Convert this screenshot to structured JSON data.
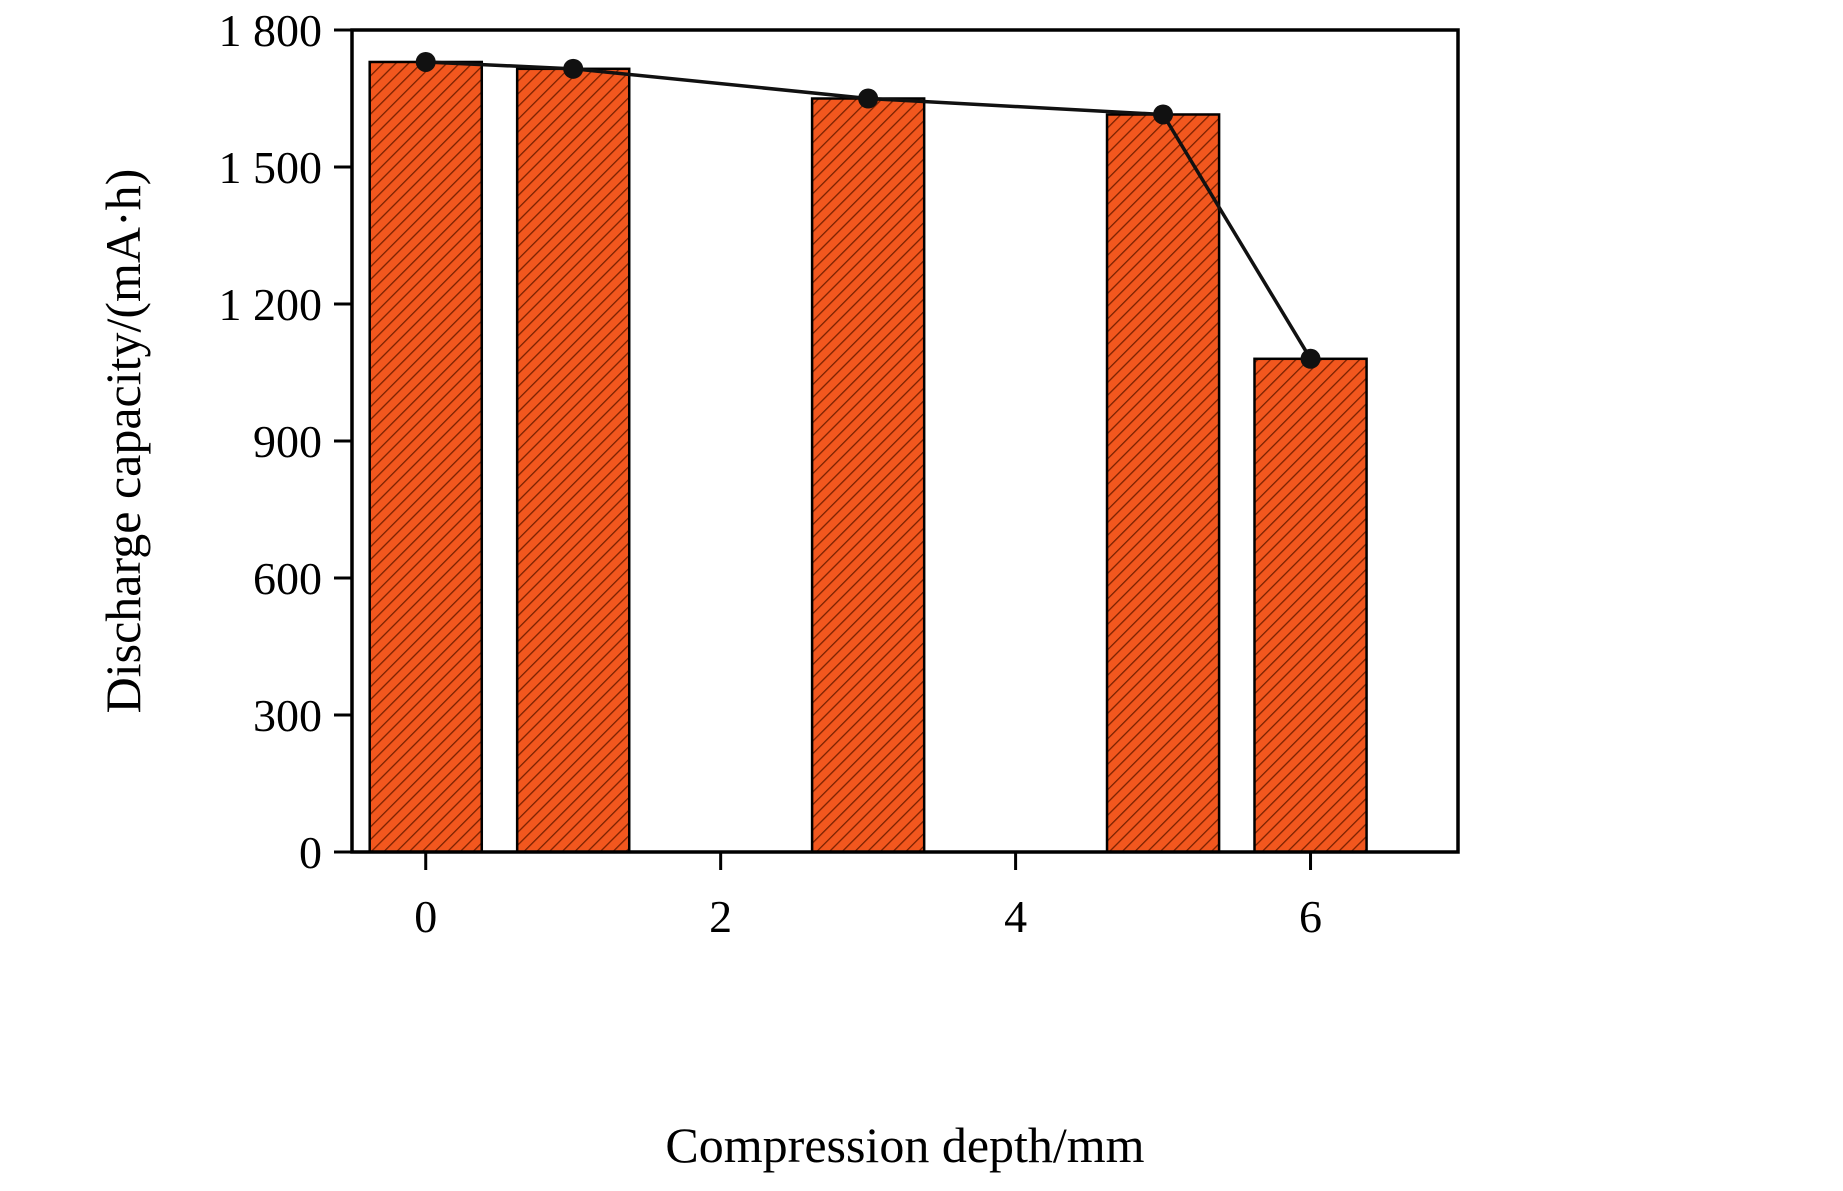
{
  "figure": {
    "title": "",
    "background": "#ffffff"
  },
  "chart_data": {
    "type": "bar",
    "overlay": "line",
    "x": [
      0,
      1,
      3,
      5,
      6
    ],
    "bar_values": [
      1730,
      1715,
      1650,
      1615,
      1080
    ],
    "line_values": [
      1730,
      1715,
      1650,
      1615,
      1080
    ],
    "title": "",
    "xlabel": "Compression depth/mm",
    "ylabel": "Discharge capacity/(mA·h)",
    "xlim": [
      -0.5,
      7.0
    ],
    "ylim": [
      0,
      1800
    ],
    "xticks": [
      0,
      2,
      4,
      6
    ],
    "xtick_labels": [
      "0",
      "2",
      "4",
      "6"
    ],
    "yticks": [
      0,
      300,
      600,
      900,
      1200,
      1500,
      1800
    ],
    "ytick_labels": [
      "0",
      "300",
      "600",
      "900",
      "1 200",
      "1 500",
      "1 800"
    ],
    "bar_width": 0.76,
    "grid": false,
    "legend": "none",
    "colors": {
      "bar_fill": "#F2571E",
      "bar_hatch": "#7A2100",
      "bar_edge": "#000000",
      "line": "#111111",
      "marker": "#111111",
      "frame": "#000000"
    },
    "marker_shape": "circle"
  }
}
